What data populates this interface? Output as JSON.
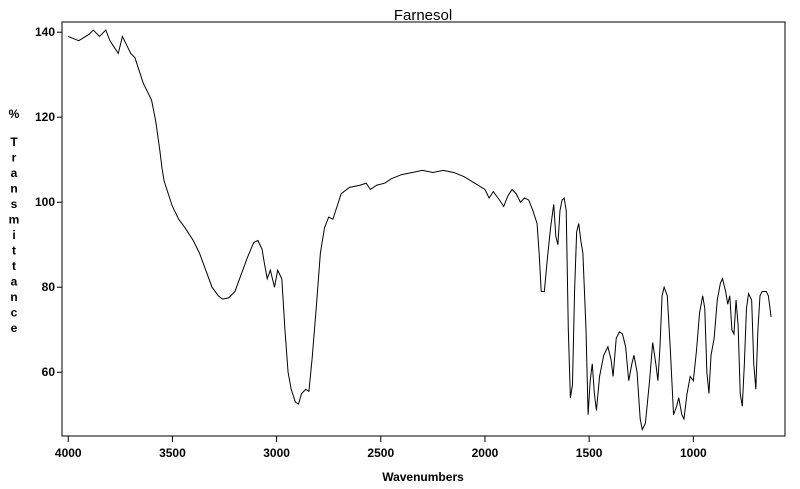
{
  "chart_data": {
    "type": "line",
    "title": "Farnesol",
    "x_label": "Wavenumbers",
    "y_label": "% Transmittance",
    "color": "#000000",
    "xlim": [
      4030,
      560
    ],
    "ylim": [
      45,
      142.4
    ],
    "xticks": [
      4000,
      3500,
      3000,
      2500,
      2000,
      1500,
      1000
    ],
    "yticks": [
      60,
      80,
      100,
      120,
      140
    ],
    "x": [
      4000,
      3950,
      3900,
      3880,
      3850,
      3820,
      3800,
      3780,
      3760,
      3740,
      3720,
      3700,
      3680,
      3660,
      3640,
      3620,
      3600,
      3580,
      3560,
      3550,
      3540,
      3520,
      3500,
      3470,
      3440,
      3400,
      3370,
      3340,
      3310,
      3280,
      3260,
      3230,
      3200,
      3170,
      3140,
      3110,
      3090,
      3070,
      3060,
      3045,
      3030,
      3010,
      2995,
      2975,
      2960,
      2945,
      2930,
      2910,
      2895,
      2880,
      2860,
      2845,
      2830,
      2810,
      2790,
      2770,
      2750,
      2730,
      2710,
      2690,
      2650,
      2600,
      2570,
      2550,
      2520,
      2480,
      2450,
      2400,
      2350,
      2300,
      2250,
      2200,
      2150,
      2100,
      2050,
      2000,
      1980,
      1960,
      1930,
      1910,
      1890,
      1870,
      1850,
      1830,
      1810,
      1790,
      1770,
      1750,
      1740,
      1730,
      1715,
      1700,
      1685,
      1670,
      1660,
      1650,
      1640,
      1630,
      1620,
      1610,
      1600,
      1590,
      1580,
      1570,
      1560,
      1550,
      1540,
      1530,
      1515,
      1505,
      1495,
      1485,
      1475,
      1465,
      1450,
      1430,
      1410,
      1395,
      1385,
      1370,
      1355,
      1340,
      1325,
      1310,
      1295,
      1285,
      1270,
      1255,
      1245,
      1230,
      1210,
      1195,
      1180,
      1170,
      1160,
      1150,
      1140,
      1125,
      1110,
      1095,
      1080,
      1070,
      1055,
      1045,
      1030,
      1015,
      1000,
      985,
      970,
      955,
      945,
      935,
      925,
      915,
      900,
      885,
      870,
      860,
      845,
      835,
      825,
      815,
      805,
      795,
      785,
      775,
      765,
      755,
      745,
      735,
      720,
      710,
      700,
      690,
      680,
      670,
      650,
      640,
      632,
      627
    ],
    "values": [
      139,
      138,
      139.5,
      140.5,
      139,
      140.5,
      138,
      136.5,
      135,
      139,
      137,
      135,
      134,
      131,
      128,
      126,
      124,
      119,
      112,
      108,
      105,
      102,
      99,
      96,
      94,
      91,
      88,
      84,
      80,
      78,
      77.2,
      77.5,
      79,
      83,
      87,
      90.5,
      91,
      89,
      86,
      82,
      84,
      80,
      84,
      82,
      70,
      60,
      56,
      53,
      52.5,
      55,
      56,
      55.5,
      63,
      75,
      88,
      94,
      96.5,
      96,
      99,
      102,
      103.5,
      104,
      104.5,
      103,
      104,
      104.5,
      105.5,
      106.5,
      107,
      107.5,
      107,
      107.5,
      107,
      106,
      104.5,
      103,
      101,
      102.5,
      100.5,
      99,
      101.5,
      103,
      102,
      100,
      101,
      100.5,
      98,
      95,
      88,
      79,
      79,
      87,
      94,
      99.5,
      92,
      90,
      98,
      100.5,
      101,
      98,
      70,
      54,
      57,
      79,
      93,
      95,
      91,
      88,
      70,
      50,
      58,
      62,
      55,
      51,
      59,
      64,
      66,
      63,
      59,
      68,
      69.5,
      69,
      66,
      58,
      62,
      64,
      60,
      49,
      46.5,
      48,
      58,
      67,
      62,
      58,
      66,
      78,
      80,
      78,
      65,
      50,
      52,
      54,
      50,
      49,
      55,
      59,
      58,
      65,
      74,
      78,
      75,
      60,
      55,
      64,
      68,
      77,
      81,
      82,
      79,
      76,
      78,
      70,
      69,
      77,
      71,
      55,
      52,
      62,
      75,
      78.5,
      77,
      62,
      56,
      70,
      78,
      79,
      79,
      78,
      75,
      73
    ]
  }
}
